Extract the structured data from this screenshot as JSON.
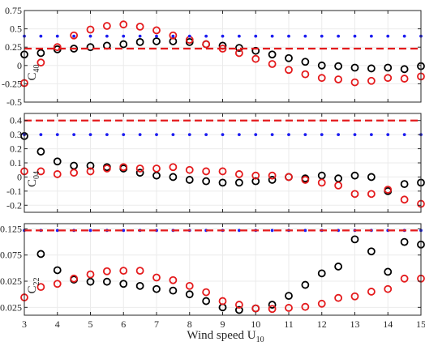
{
  "chart_data": [
    {
      "type": "scatter",
      "ylabel": "C",
      "ylabel_sub": "40",
      "ylim": [
        -0.5,
        0.75
      ],
      "yticks": [
        -0.5,
        -0.25,
        0,
        0.25,
        0.5,
        0.75
      ],
      "ytick_labels": [
        "-0.5",
        "-0.25",
        "0",
        "0.25",
        "0.5",
        "0.75"
      ],
      "xlim": [
        3,
        15
      ],
      "xticks": [
        3,
        4,
        5,
        6,
        7,
        8,
        9,
        10,
        11,
        12,
        13,
        14,
        15
      ],
      "grid": true,
      "series": [
        {
          "marker": "circle-open",
          "color": "#000000",
          "x": [
            3,
            3.5,
            4,
            4.5,
            5,
            5.5,
            6,
            6.5,
            7,
            7.5,
            8,
            8.5,
            9,
            9.5,
            10,
            10.5,
            11,
            11.5,
            12,
            12.5,
            13,
            13.5,
            14,
            14.5,
            15
          ],
          "y": [
            0.15,
            0.17,
            0.22,
            0.23,
            0.25,
            0.27,
            0.29,
            0.32,
            0.33,
            0.33,
            0.32,
            0.29,
            0.27,
            0.24,
            0.2,
            0.15,
            0.1,
            0.05,
            0,
            -0.01,
            -0.03,
            -0.04,
            -0.03,
            -0.05,
            -0.01
          ]
        },
        {
          "marker": "circle-open",
          "color": "#e41a1c",
          "x": [
            3,
            3.5,
            4,
            4.5,
            5,
            5.5,
            6,
            6.5,
            7,
            7.5,
            8,
            8.5,
            9,
            9.5,
            10,
            10.5,
            11,
            11.5,
            12,
            12.5,
            13,
            13.5,
            14,
            14.5,
            15
          ],
          "y": [
            -0.24,
            0.04,
            0.25,
            0.41,
            0.49,
            0.54,
            0.56,
            0.53,
            0.48,
            0.41,
            0.35,
            0.29,
            0.23,
            0.17,
            0.09,
            0.02,
            -0.06,
            -0.12,
            -0.17,
            -0.19,
            -0.23,
            -0.21,
            -0.17,
            -0.18,
            -0.15
          ]
        },
        {
          "marker": "dot",
          "color": "#1c1cf0",
          "x": [
            3,
            3.5,
            4,
            4.5,
            5,
            5.5,
            6,
            6.5,
            7,
            7.5,
            8,
            8.5,
            9,
            9.5,
            10,
            10.5,
            11,
            11.5,
            12,
            12.5,
            13,
            13.5,
            14,
            14.5,
            15
          ],
          "y": [
            0.4,
            0.4,
            0.4,
            0.4,
            0.4,
            0.4,
            0.4,
            0.4,
            0.4,
            0.4,
            0.4,
            0.4,
            0.4,
            0.4,
            0.4,
            0.4,
            0.4,
            0.4,
            0.4,
            0.4,
            0.4,
            0.4,
            0.4,
            0.4,
            0.4
          ]
        },
        {
          "marker": "dashed-line",
          "color": "#e41a1c",
          "x": [
            3,
            15
          ],
          "y": [
            0.23,
            0.23
          ]
        }
      ]
    },
    {
      "type": "scatter",
      "ylabel": "C",
      "ylabel_sub": "04",
      "ylim": [
        -0.25,
        0.45
      ],
      "yticks": [
        -0.2,
        -0.1,
        0,
        0.1,
        0.2,
        0.3,
        0.4
      ],
      "ytick_labels": [
        "-0.2",
        "-0.1",
        "0",
        "0.1",
        "0.2",
        "0.3",
        "0.4"
      ],
      "xlim": [
        3,
        15
      ],
      "xticks": [
        3,
        4,
        5,
        6,
        7,
        8,
        9,
        10,
        11,
        12,
        13,
        14,
        15
      ],
      "grid": true,
      "series": [
        {
          "marker": "circle-open",
          "color": "#000000",
          "x": [
            3,
            3.5,
            4,
            4.5,
            5,
            5.5,
            6,
            6.5,
            7,
            7.5,
            8,
            8.5,
            9,
            9.5,
            10,
            10.5,
            11,
            11.5,
            12,
            12.5,
            13,
            13.5,
            14,
            14.5,
            15
          ],
          "y": [
            0.29,
            0.18,
            0.11,
            0.08,
            0.08,
            0.07,
            0.06,
            0.03,
            0.01,
            0,
            -0.02,
            -0.03,
            -0.04,
            -0.04,
            -0.03,
            -0.02,
            0,
            -0.01,
            0.01,
            -0.01,
            0.01,
            0,
            -0.1,
            -0.05,
            -0.04
          ]
        },
        {
          "marker": "circle-open",
          "color": "#e41a1c",
          "x": [
            3,
            3.5,
            4,
            4.5,
            5,
            5.5,
            6,
            6.5,
            7,
            7.5,
            8,
            8.5,
            9,
            9.5,
            10,
            10.5,
            11,
            11.5,
            12,
            12.5,
            13,
            13.5,
            14,
            14.5,
            15
          ],
          "y": [
            0.04,
            0.04,
            0.02,
            0.03,
            0.04,
            0.06,
            0.07,
            0.06,
            0.06,
            0.07,
            0.05,
            0.04,
            0.04,
            0.02,
            0.01,
            0.01,
            0,
            -0.02,
            -0.04,
            -0.06,
            -0.12,
            -0.12,
            -0.09,
            -0.16,
            -0.19
          ]
        },
        {
          "marker": "dot",
          "color": "#1c1cf0",
          "x": [
            3,
            3.5,
            4,
            4.5,
            5,
            5.5,
            6,
            6.5,
            7,
            7.5,
            8,
            8.5,
            9,
            9.5,
            10,
            10.5,
            11,
            11.5,
            12,
            12.5,
            13,
            13.5,
            14,
            14.5,
            15
          ],
          "y": [
            0.3,
            0.3,
            0.3,
            0.3,
            0.3,
            0.3,
            0.3,
            0.3,
            0.3,
            0.3,
            0.3,
            0.3,
            0.3,
            0.3,
            0.3,
            0.3,
            0.3,
            0.3,
            0.3,
            0.3,
            0.3,
            0.3,
            0.3,
            0.3,
            0.3
          ]
        },
        {
          "marker": "dashed-line",
          "color": "#e41a1c",
          "x": [
            3,
            15
          ],
          "y": [
            0.4,
            0.4
          ]
        }
      ]
    },
    {
      "type": "scatter",
      "ylabel": "C",
      "ylabel_sub": "22",
      "ylim": [
        -0.04,
        0.135
      ],
      "yticks": [
        -0.025,
        0.025,
        0.075,
        0.125
      ],
      "ytick_labels": [
        "-0.025",
        "0.025",
        "0.075",
        "0.125"
      ],
      "xlim": [
        3,
        15
      ],
      "xticks": [
        3,
        4,
        5,
        6,
        7,
        8,
        9,
        10,
        11,
        12,
        13,
        14,
        15
      ],
      "xtick_labels": [
        "3",
        "4",
        "5",
        "6",
        "7",
        "8",
        "9",
        "10",
        "11",
        "12",
        "13",
        "14",
        "15"
      ],
      "xlabel": "Wind speed U",
      "xlabel_sub": "10",
      "grid": true,
      "series": [
        {
          "marker": "circle-open",
          "color": "#000000",
          "x": [
            3.5,
            4,
            4.5,
            5,
            5.5,
            6,
            6.5,
            7,
            7.5,
            8,
            8.5,
            9,
            9.5,
            10,
            10.5,
            11,
            11.5,
            12,
            12.5,
            13,
            13.5,
            14,
            14.5,
            15
          ],
          "y": [
            0.077,
            0.046,
            0.028,
            0.024,
            0.024,
            0.02,
            0.016,
            0.01,
            0.007,
            0,
            -0.013,
            -0.025,
            -0.03,
            -0.027,
            -0.02,
            -0.003,
            0.018,
            0.04,
            0.053,
            0.105,
            0.082,
            0.043,
            0.1,
            0.095
          ]
        },
        {
          "marker": "circle-open",
          "color": "#e41a1c",
          "x": [
            3,
            3.5,
            4,
            4.5,
            5,
            5.5,
            6,
            6.5,
            7,
            7.5,
            8,
            8.5,
            9,
            9.5,
            10,
            10.5,
            11,
            11.5,
            12,
            12.5,
            13,
            13.5,
            14,
            14.5,
            15
          ],
          "y": [
            -0.006,
            0.014,
            0.02,
            0.03,
            0.038,
            0.044,
            0.045,
            0.045,
            0.032,
            0.027,
            0.016,
            0.004,
            -0.013,
            -0.02,
            -0.027,
            -0.028,
            -0.026,
            -0.024,
            -0.018,
            -0.007,
            -0.004,
            0.005,
            0.01,
            0.03,
            0.03
          ]
        },
        {
          "marker": "dot",
          "color": "#1c1cf0",
          "x": [
            3,
            3.5,
            4,
            4.5,
            5,
            5.5,
            6,
            6.5,
            7,
            7.5,
            8,
            8.5,
            9,
            9.5,
            10,
            10.5,
            11,
            11.5,
            12,
            12.5,
            13,
            13.5,
            14,
            14.5,
            15
          ],
          "y": [
            0.122,
            0.122,
            0.122,
            0.122,
            0.122,
            0.122,
            0.122,
            0.122,
            0.122,
            0.122,
            0.122,
            0.122,
            0.122,
            0.122,
            0.122,
            0.122,
            0.122,
            0.122,
            0.122,
            0.122,
            0.122,
            0.122,
            0.122,
            0.122,
            0.122
          ]
        },
        {
          "marker": "dashed-line",
          "color": "#e41a1c",
          "x": [
            3,
            15
          ],
          "y": [
            0.122,
            0.122
          ]
        }
      ]
    }
  ]
}
